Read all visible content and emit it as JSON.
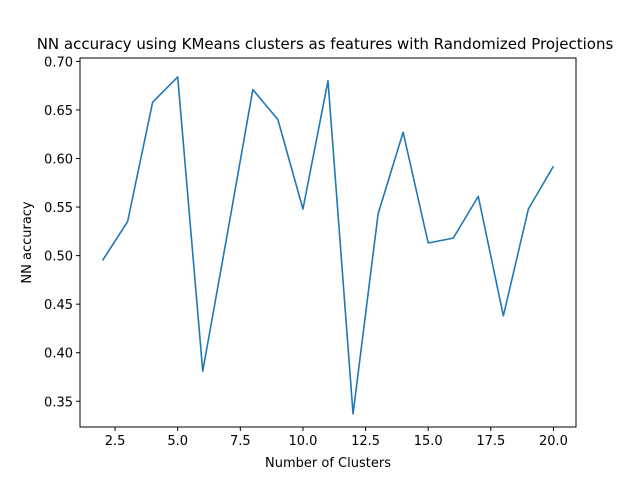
{
  "chart_data": {
    "type": "line",
    "title": "NN accuracy using KMeans clusters as features with Randomized Projections",
    "xlabel": "Number of Clusters",
    "ylabel": "NN accuracy",
    "xlim": [
      1.1,
      20.9
    ],
    "ylim": [
      0.3235,
      0.7035
    ],
    "xticks": [
      2.5,
      5.0,
      7.5,
      10.0,
      12.5,
      15.0,
      17.5,
      20.0
    ],
    "xtick_labels": [
      "2.5",
      "5.0",
      "7.5",
      "10.0",
      "12.5",
      "15.0",
      "17.5",
      "20.0"
    ],
    "yticks": [
      0.35,
      0.4,
      0.45,
      0.5,
      0.55,
      0.6,
      0.65,
      0.7
    ],
    "ytick_labels": [
      "0.35",
      "0.40",
      "0.45",
      "0.50",
      "0.55",
      "0.60",
      "0.65",
      "0.70"
    ],
    "grid": false,
    "line_color": "#1f77b4",
    "series": [
      {
        "x": [
          2,
          3,
          4,
          5,
          6,
          7,
          8,
          9,
          10,
          11,
          12,
          13,
          14,
          15,
          16,
          17,
          18,
          19,
          20
        ],
        "values": [
          0.495,
          0.535,
          0.658,
          0.684,
          0.381,
          0.525,
          0.671,
          0.64,
          0.548,
          0.68,
          0.337,
          0.543,
          0.627,
          0.513,
          0.518,
          0.561,
          0.438,
          0.548,
          0.592
        ]
      }
    ]
  }
}
